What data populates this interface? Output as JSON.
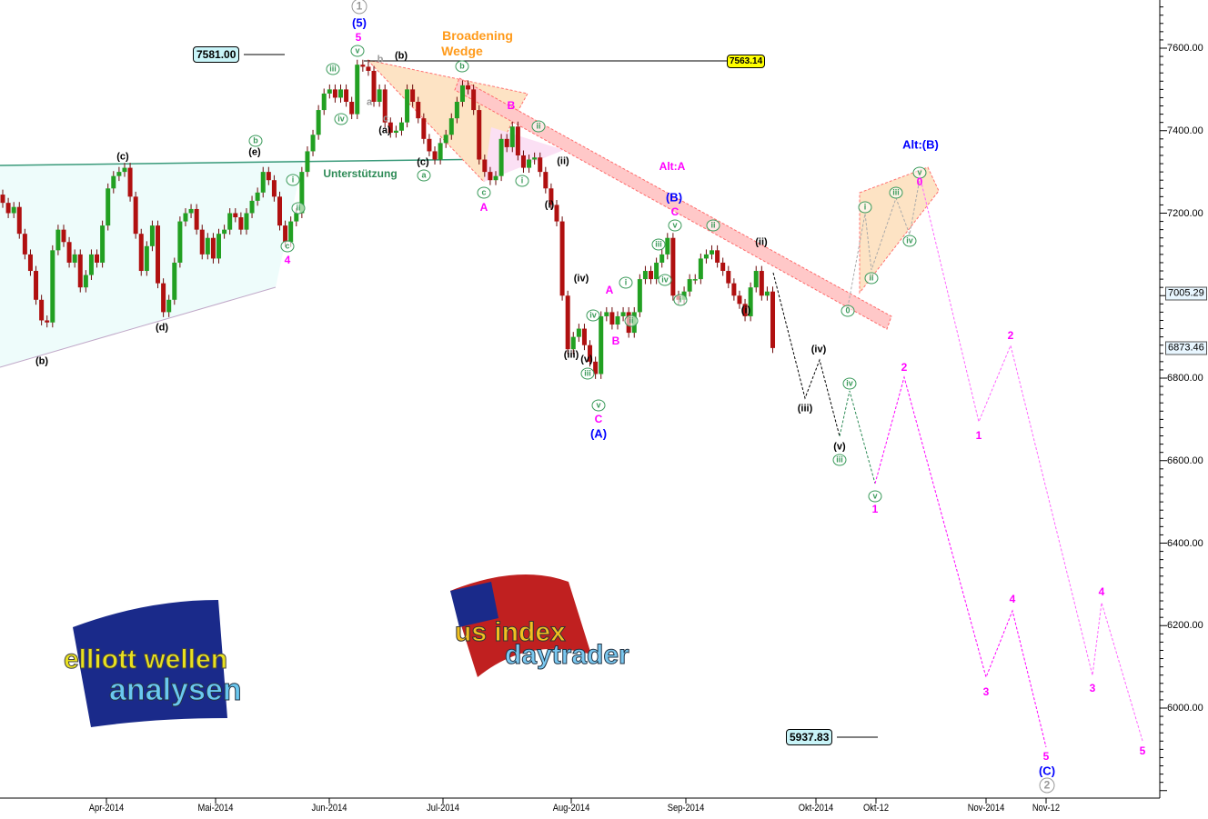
{
  "chart_data": {
    "type": "candlestick",
    "closes": [
      7225,
      7200,
      7215,
      7150,
      7100,
      7060,
      6990,
      6940,
      6935,
      7110,
      7160,
      7130,
      7080,
      7100,
      7020,
      7050,
      7100,
      7080,
      7170,
      7260,
      7290,
      7300,
      7310,
      7240,
      7150,
      7060,
      7120,
      7170,
      7030,
      6960,
      6990,
      7080,
      7180,
      7200,
      7210,
      7160,
      7100,
      7140,
      7090,
      7150,
      7160,
      7200,
      7190,
      7160,
      7200,
      7230,
      7250,
      7300,
      7280,
      7240,
      7170,
      7130,
      7180,
      7200,
      7300,
      7350,
      7390,
      7450,
      7490,
      7500,
      7480,
      7500,
      7470,
      7440,
      7560,
      7555,
      7545,
      7470,
      7500,
      7420,
      7395,
      7400,
      7420,
      7500,
      7470,
      7430,
      7380,
      7350,
      7330,
      7370,
      7390,
      7430,
      7470,
      7510,
      7500,
      7450,
      7330,
      7300,
      7280,
      7290,
      7380,
      7360,
      7410,
      7340,
      7310,
      7330,
      7335,
      7300,
      7260,
      7220,
      7180,
      7000,
      6870,
      6900,
      6920,
      6880,
      6840,
      6810,
      6950,
      6960,
      6930,
      6950,
      6960,
      6910,
      6960,
      7040,
      7060,
      7040,
      7080,
      7100,
      7140,
      7000,
      6990,
      7010,
      7040,
      7040,
      7090,
      7100,
      7110,
      7080,
      7060,
      7030,
      7000,
      6980,
      6950,
      7020,
      7060,
      7000,
      7010,
      6873
    ],
    "ylim": [
      5782,
      7717
    ],
    "y_ticks": [
      "7600.00",
      "7400.00",
      "7200.00",
      "6800.00",
      "6600.00",
      "6400.00",
      "6200.00",
      "6000.00"
    ],
    "y_tick_values": [
      7600,
      7400,
      7200,
      6800,
      6600,
      6400,
      6200,
      6000
    ],
    "price_markers": [
      "7005.29",
      "6873.46"
    ],
    "price_marker_values": [
      7005.29,
      6873.46
    ],
    "x_ticks": [
      "Apr-2014",
      "Mai-2014",
      "Jun-2014",
      "Jul-2014",
      "Aug-2014",
      "Sep-2014",
      "Okt-2014",
      "Okt-12",
      "Nov-2014",
      "Nov-12"
    ],
    "up_color": "#22a022",
    "down_color": "#b01010",
    "grid": false
  },
  "levels": {
    "top_left": "7581.00",
    "top_right": "7563.14",
    "target": "5937.83"
  },
  "annotations": {
    "wedge_line1": "Broadening",
    "wedge_line2": "Wedge",
    "support": "Unterstützung",
    "alt_a": "Alt:A",
    "alt_b": "Alt:(B)"
  },
  "wave_labels": [
    {
      "text": "(b)",
      "style": "black"
    },
    {
      "text": "(c)",
      "style": "black"
    },
    {
      "text": "(d)",
      "style": "black"
    },
    {
      "text": "(e)",
      "style": "black"
    },
    {
      "text": "(b)",
      "style": "black"
    },
    {
      "text": "(a)",
      "style": "black"
    },
    {
      "text": "(c)",
      "style": "black"
    },
    {
      "text": "(ii)",
      "style": "black"
    },
    {
      "text": "(i)",
      "style": "black"
    },
    {
      "text": "(iv)",
      "style": "black"
    },
    {
      "text": "(iii)",
      "style": "black"
    },
    {
      "text": "(v)",
      "style": "black"
    },
    {
      "text": "(ii)",
      "style": "black"
    },
    {
      "text": "(i)",
      "style": "black"
    },
    {
      "text": "(iv)",
      "style": "black"
    },
    {
      "text": "(iii)",
      "style": "black"
    },
    {
      "text": "(v)",
      "style": "black"
    },
    {
      "text": "b",
      "style": "gcirc"
    },
    {
      "text": "c",
      "style": "gcirc"
    },
    {
      "text": "i",
      "style": "gcirc"
    },
    {
      "text": "ii",
      "style": "gcirc"
    },
    {
      "text": "iii",
      "style": "gcirc"
    },
    {
      "text": "iv",
      "style": "gcirc"
    },
    {
      "text": "v",
      "style": "gcirc"
    },
    {
      "text": "b",
      "style": "gcirc"
    },
    {
      "text": "a",
      "style": "gcirc"
    },
    {
      "text": "c",
      "style": "gcirc"
    },
    {
      "text": "i",
      "style": "gcirc"
    },
    {
      "text": "ii",
      "style": "gcirc"
    },
    {
      "text": "iv",
      "style": "gcirc"
    },
    {
      "text": "iii",
      "style": "gcirc"
    },
    {
      "text": "v",
      "style": "gcirc"
    },
    {
      "text": "i",
      "style": "gcirc"
    },
    {
      "text": "ii",
      "style": "gcirc"
    },
    {
      "text": "iii",
      "style": "gcirc"
    },
    {
      "text": "iv",
      "style": "gcirc"
    },
    {
      "text": "v",
      "style": "gcirc"
    },
    {
      "text": "i",
      "style": "gcirc"
    },
    {
      "text": "ii",
      "style": "gcirc"
    },
    {
      "text": "0",
      "style": "gcirc"
    },
    {
      "text": "i",
      "style": "gcirc"
    },
    {
      "text": "ii",
      "style": "gcirc"
    },
    {
      "text": "iii",
      "style": "gcirc"
    },
    {
      "text": "iv",
      "style": "gcirc"
    },
    {
      "text": "v",
      "style": "gcirc"
    },
    {
      "text": "iii",
      "style": "gcirc"
    },
    {
      "text": "iv",
      "style": "gcirc"
    },
    {
      "text": "v",
      "style": "gcirc"
    },
    {
      "text": "a",
      "style": "gray"
    },
    {
      "text": "b",
      "style": "gray"
    },
    {
      "text": "c",
      "style": "gray"
    },
    {
      "text": "1",
      "style": "graycirc"
    },
    {
      "text": "2",
      "style": "graycirc"
    },
    {
      "text": "5",
      "style": "mag"
    },
    {
      "text": "4",
      "style": "mag"
    },
    {
      "text": "A",
      "style": "mag"
    },
    {
      "text": "B",
      "style": "mag"
    },
    {
      "text": "C",
      "style": "mag"
    },
    {
      "text": "A",
      "style": "mag"
    },
    {
      "text": "B",
      "style": "mag"
    },
    {
      "text": "C",
      "style": "mag"
    },
    {
      "text": "0",
      "style": "mag"
    },
    {
      "text": "1",
      "style": "mag"
    },
    {
      "text": "2",
      "style": "mag"
    },
    {
      "text": "3",
      "style": "mag"
    },
    {
      "text": "4",
      "style": "mag"
    },
    {
      "text": "5",
      "style": "mag"
    },
    {
      "text": "1",
      "style": "mag"
    },
    {
      "text": "2",
      "style": "mag"
    },
    {
      "text": "3",
      "style": "mag"
    },
    {
      "text": "4",
      "style": "mag"
    },
    {
      "text": "5",
      "style": "mag"
    },
    {
      "text": "(5)",
      "style": "blue"
    },
    {
      "text": "(B)",
      "style": "blue"
    },
    {
      "text": "(A)",
      "style": "blue"
    },
    {
      "text": "(C)",
      "style": "blue"
    }
  ],
  "logos": {
    "left": "elliott wellen analysen",
    "right": "us index daytrader"
  }
}
